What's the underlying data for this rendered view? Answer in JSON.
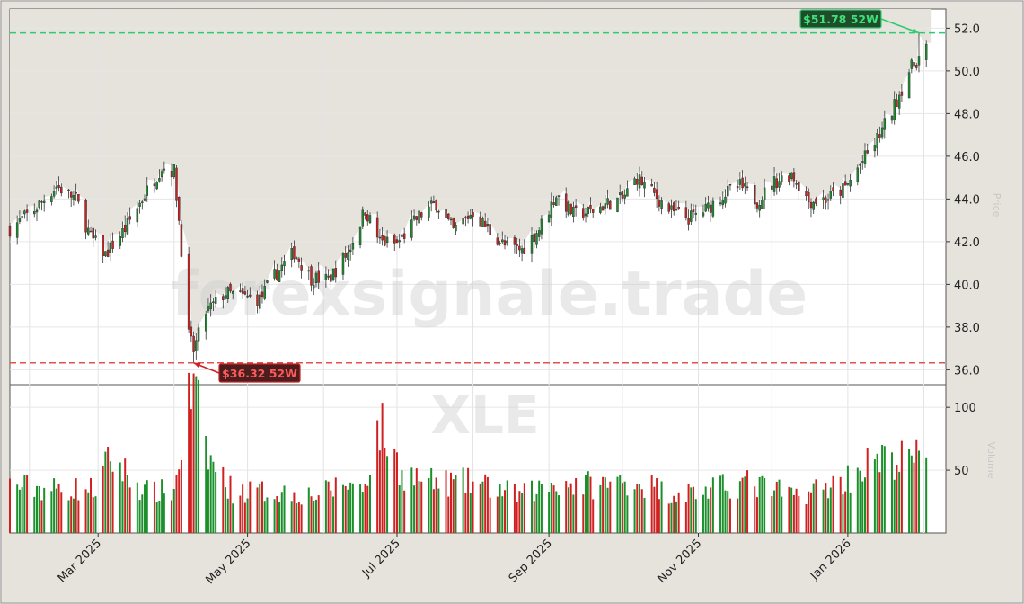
{
  "watermark": {
    "site": "forexsignale.trade",
    "ticker": "XLE"
  },
  "side_labels": {
    "price": "Price",
    "volume": "Volume"
  },
  "colors": {
    "up": "#1a8f2a",
    "down": "#d02020",
    "high_line": "#2ecc71",
    "low_line": "#e05050"
  },
  "chart_data": {
    "type": "candlestick",
    "price_axis": {
      "ticks": [
        "36.0",
        "38.0",
        "40.0",
        "42.0",
        "44.0",
        "46.0",
        "48.0",
        "50.0",
        "52.0"
      ],
      "range": [
        35.3,
        52.9
      ]
    },
    "volume_axis": {
      "ticks": [
        "50",
        "100"
      ],
      "range": [
        0,
        118
      ]
    },
    "x_axis": {
      "ticks": [
        "Mar 2025",
        "May 2025",
        "Jul 2025",
        "Sep 2025",
        "Nov 2025",
        "Jan 2026"
      ],
      "tick_dates": [
        "2025-03-01",
        "2025-05-01",
        "2025-07-01",
        "2025-09-01",
        "2025-11-01",
        "2026-01-01"
      ],
      "range": [
        "2025-01-24",
        "2026-02-10"
      ]
    },
    "annotations": {
      "high": {
        "label": "$51.78 52W",
        "value": 51.78,
        "date": "2026-01-30"
      },
      "low": {
        "label": "$36.32 52W",
        "value": 36.32,
        "date": "2025-04-09"
      }
    },
    "price_path": [
      [
        "2025-01-24",
        42.6
      ],
      [
        "2025-02-03",
        43.5
      ],
      [
        "2025-02-12",
        44.6
      ],
      [
        "2025-02-20",
        44.0
      ],
      [
        "2025-02-26",
        42.2
      ],
      [
        "2025-03-04",
        41.4
      ],
      [
        "2025-03-12",
        42.6
      ],
      [
        "2025-03-20",
        44.2
      ],
      [
        "2025-03-27",
        45.5
      ],
      [
        "2025-04-01",
        45.3
      ],
      [
        "2025-04-03",
        43.0
      ],
      [
        "2025-04-07",
        37.6
      ],
      [
        "2025-04-09",
        36.9
      ],
      [
        "2025-04-14",
        38.7
      ],
      [
        "2025-04-22",
        39.6
      ],
      [
        "2025-04-30",
        39.4
      ],
      [
        "2025-05-06",
        39.3
      ],
      [
        "2025-05-12",
        40.4
      ],
      [
        "2025-05-20",
        41.5
      ],
      [
        "2025-05-27",
        40.3
      ],
      [
        "2025-06-03",
        40.2
      ],
      [
        "2025-06-11",
        41.5
      ],
      [
        "2025-06-18",
        43.5
      ],
      [
        "2025-06-24",
        42.0
      ],
      [
        "2025-07-01",
        41.9
      ],
      [
        "2025-07-10",
        43.2
      ],
      [
        "2025-07-17",
        43.8
      ],
      [
        "2025-07-24",
        42.5
      ],
      [
        "2025-08-01",
        43.4
      ],
      [
        "2025-08-07",
        42.6
      ],
      [
        "2025-08-14",
        41.8
      ],
      [
        "2025-08-21",
        41.6
      ],
      [
        "2025-08-28",
        42.6
      ],
      [
        "2025-09-04",
        44.2
      ],
      [
        "2025-09-11",
        43.3
      ],
      [
        "2025-09-18",
        43.4
      ],
      [
        "2025-09-25",
        43.8
      ],
      [
        "2025-10-01",
        44.0
      ],
      [
        "2025-10-07",
        45.0
      ],
      [
        "2025-10-14",
        44.2
      ],
      [
        "2025-10-21",
        43.4
      ],
      [
        "2025-10-28",
        43.1
      ],
      [
        "2025-11-04",
        43.5
      ],
      [
        "2025-11-11",
        44.2
      ],
      [
        "2025-11-18",
        44.6
      ],
      [
        "2025-11-25",
        43.9
      ],
      [
        "2025-12-02",
        44.8
      ],
      [
        "2025-12-09",
        45.2
      ],
      [
        "2025-12-16",
        43.9
      ],
      [
        "2025-12-23",
        44.0
      ],
      [
        "2025-12-31",
        44.5
      ],
      [
        "2026-01-06",
        45.6
      ],
      [
        "2026-01-12",
        46.6
      ],
      [
        "2026-01-19",
        48.1
      ],
      [
        "2026-01-26",
        50.0
      ],
      [
        "2026-02-02",
        51.1
      ]
    ],
    "volume_path": [
      [
        "2025-01-24",
        38
      ],
      [
        "2025-02-10",
        35
      ],
      [
        "2025-02-28",
        35
      ],
      [
        "2025-03-06",
        60
      ],
      [
        "2025-03-20",
        33
      ],
      [
        "2025-04-01",
        33
      ],
      [
        "2025-04-07",
        105
      ],
      [
        "2025-04-09",
        112
      ],
      [
        "2025-04-15",
        60
      ],
      [
        "2025-04-25",
        33
      ],
      [
        "2025-05-12",
        33
      ],
      [
        "2025-05-30",
        30
      ],
      [
        "2025-06-10",
        40
      ],
      [
        "2025-06-17",
        35
      ],
      [
        "2025-06-24",
        85
      ],
      [
        "2025-07-03",
        48
      ],
      [
        "2025-07-15",
        40
      ],
      [
        "2025-08-01",
        40
      ],
      [
        "2025-08-20",
        30
      ],
      [
        "2025-09-04",
        40
      ],
      [
        "2025-09-22",
        38
      ],
      [
        "2025-10-06",
        42
      ],
      [
        "2025-10-20",
        32
      ],
      [
        "2025-11-03",
        33
      ],
      [
        "2025-11-20",
        40
      ],
      [
        "2025-12-10",
        30
      ],
      [
        "2025-12-29",
        40
      ],
      [
        "2026-01-09",
        55
      ],
      [
        "2026-01-21",
        58
      ],
      [
        "2026-02-02",
        60
      ]
    ]
  }
}
